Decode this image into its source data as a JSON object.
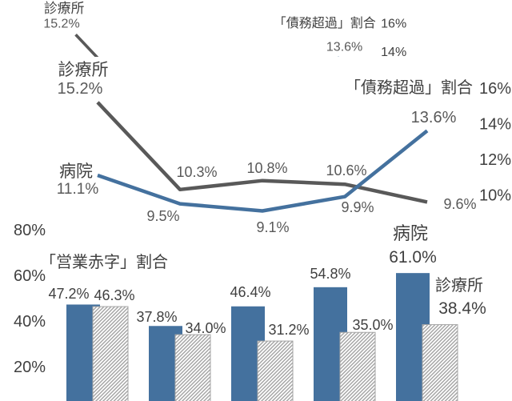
{
  "chart_data": {
    "type": "combo",
    "line_chart": {
      "type": "line",
      "title": "「債務超過」割合",
      "series": [
        {
          "name": "診療所",
          "values": [
            15.2,
            10.3,
            10.8,
            10.6,
            9.6
          ]
        },
        {
          "name": "病院",
          "values": [
            11.1,
            9.5,
            9.1,
            9.9,
            13.6
          ]
        }
      ],
      "axis": {
        "side": "right",
        "tick_labels": [
          "16%",
          "14%",
          "12%",
          "10%"
        ],
        "tick_values": [
          16,
          14,
          12,
          10
        ]
      }
    },
    "bar_chart": {
      "type": "bar",
      "title": "「営業赤字」割合",
      "series": [
        {
          "name": "病院",
          "style": "solid",
          "values": [
            47.2,
            37.8,
            46.4,
            54.8,
            61.0
          ]
        },
        {
          "name": "診療所",
          "style": "hatched",
          "values": [
            46.3,
            34.0,
            31.2,
            35.0,
            38.4
          ]
        }
      ],
      "axis": {
        "side": "left",
        "tick_labels": [
          "80%",
          "60%",
          "40%",
          "20%"
        ],
        "tick_values": [
          80,
          60,
          40,
          20
        ]
      }
    },
    "value_suffix": "%"
  },
  "colors": {
    "hospital_blue": "#44719E",
    "clinic_line_gray": "#595959",
    "hatch_gray": "#A6A6A6",
    "text_dark": "#404040",
    "text_gray": "#595959",
    "background": "#FFFFFF"
  }
}
